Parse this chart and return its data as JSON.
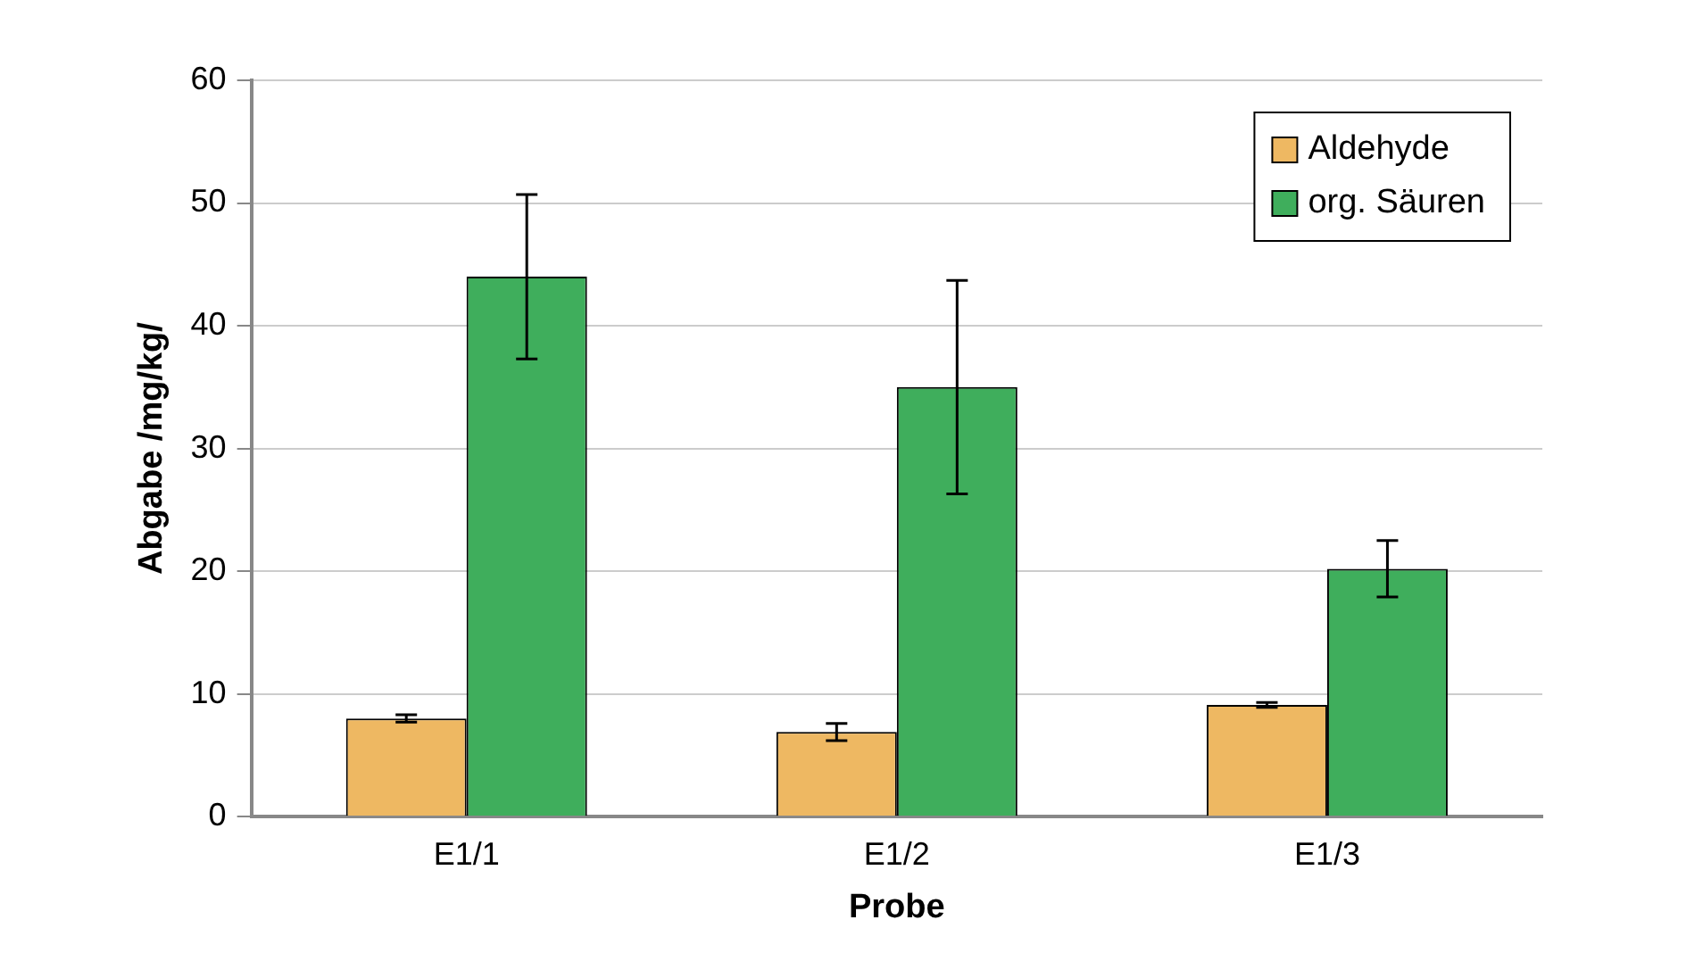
{
  "chart_data": {
    "type": "bar",
    "xlabel": "Probe",
    "ylabel": "Abgabe /mg/kg/",
    "categories": [
      "E1/1",
      "E1/2",
      "E1/3"
    ],
    "series": [
      {
        "name": "Aldehyde",
        "color": "#eeb862",
        "values": [
          8,
          6.9,
          9.1
        ],
        "errors": [
          0.3,
          0.7,
          0.2
        ]
      },
      {
        "name": "org. Säuren",
        "color": "#3fae5c",
        "values": [
          44,
          35,
          20.2
        ],
        "errors": [
          6.7,
          8.7,
          2.3
        ]
      }
    ],
    "ylim": [
      0,
      60
    ],
    "yticks": [
      0,
      10,
      20,
      30,
      40,
      50,
      60
    ],
    "grid": "y",
    "legend": "top right"
  }
}
